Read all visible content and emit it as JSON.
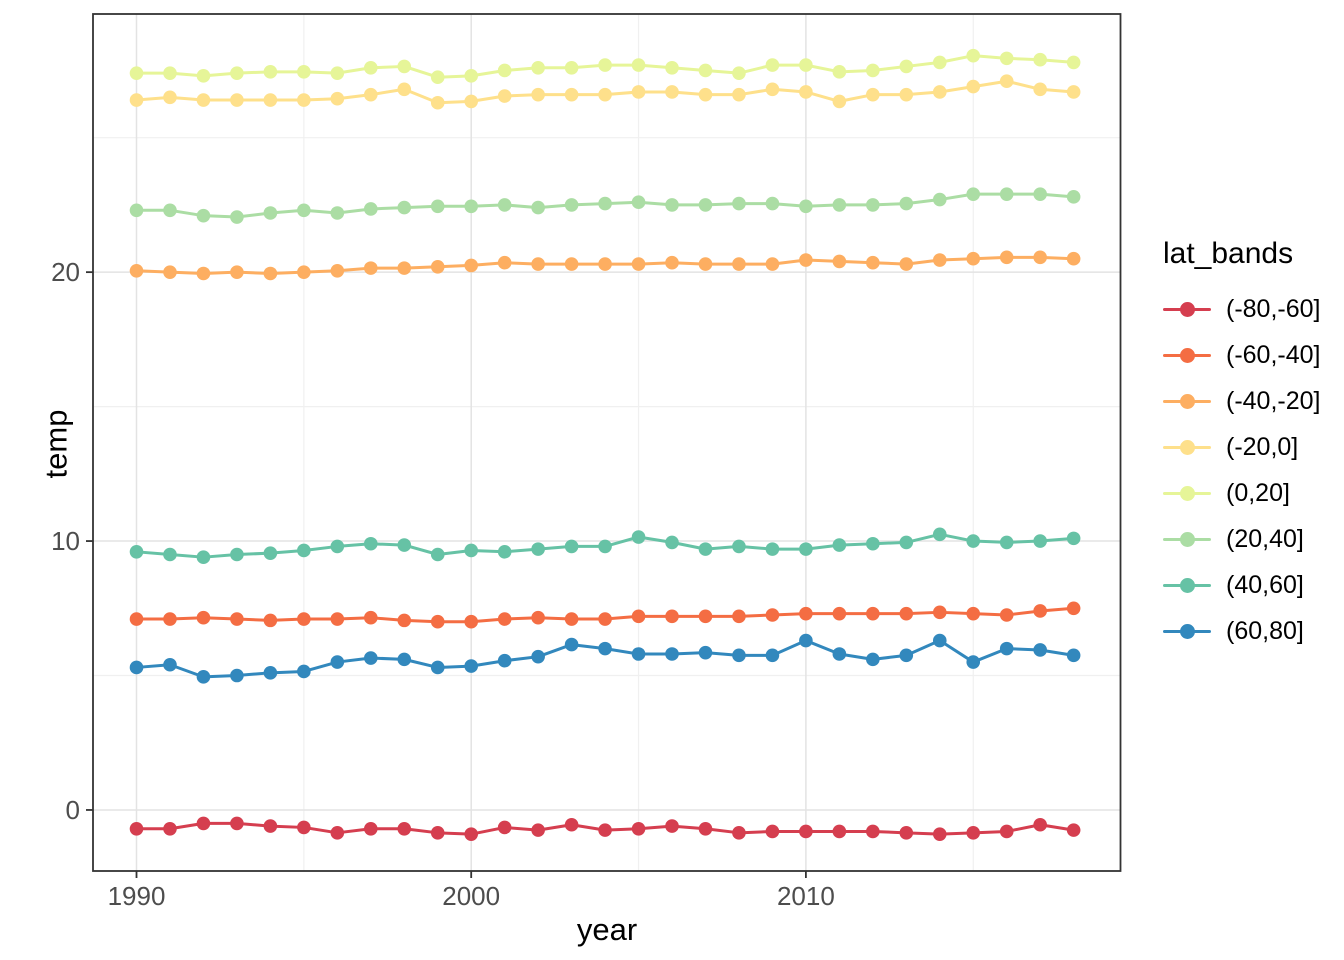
{
  "chart_data": {
    "type": "line",
    "title": "",
    "xlabel": "year",
    "ylabel": "temp",
    "legend_title": "lat_bands",
    "legend_position": "right",
    "grid": "major and minor, light grey on white panel",
    "x": [
      1990,
      1991,
      1992,
      1993,
      1994,
      1995,
      1996,
      1997,
      1998,
      1999,
      2000,
      2001,
      2002,
      2003,
      2004,
      2005,
      2006,
      2007,
      2008,
      2009,
      2010,
      2011,
      2012,
      2013,
      2014,
      2015,
      2016,
      2017,
      2018
    ],
    "x_ticks": [
      1990,
      2000,
      2010
    ],
    "x_minor_ticks": [
      1995,
      2005,
      2015
    ],
    "y_ticks": [
      0,
      10,
      20
    ],
    "y_minor_ticks": [
      5,
      15,
      25
    ],
    "xlim": [
      1988.7,
      2019.4
    ],
    "ylim": [
      -2.27,
      29.6
    ],
    "series": [
      {
        "name": "(-80,-60]",
        "color": "#D53E4F",
        "values": [
          -0.7,
          -0.7,
          -0.5,
          -0.5,
          -0.6,
          -0.65,
          -0.85,
          -0.7,
          -0.7,
          -0.85,
          -0.9,
          -0.65,
          -0.75,
          -0.55,
          -0.75,
          -0.7,
          -0.6,
          -0.7,
          -0.85,
          -0.8,
          -0.8,
          -0.8,
          -0.8,
          -0.85,
          -0.9,
          -0.85,
          -0.8,
          -0.55,
          -0.75
        ]
      },
      {
        "name": "(-60,-40]",
        "color": "#F46D43",
        "values": [
          7.1,
          7.1,
          7.15,
          7.1,
          7.05,
          7.1,
          7.1,
          7.15,
          7.05,
          7.0,
          7.0,
          7.1,
          7.15,
          7.1,
          7.1,
          7.2,
          7.2,
          7.2,
          7.2,
          7.25,
          7.3,
          7.3,
          7.3,
          7.3,
          7.35,
          7.3,
          7.25,
          7.4,
          7.5
        ]
      },
      {
        "name": "(-40,-20]",
        "color": "#FDAE61",
        "values": [
          20.05,
          20.0,
          19.95,
          20.0,
          19.95,
          20.0,
          20.05,
          20.15,
          20.15,
          20.2,
          20.25,
          20.35,
          20.3,
          20.3,
          20.3,
          20.3,
          20.35,
          20.3,
          20.3,
          20.3,
          20.45,
          20.4,
          20.35,
          20.3,
          20.45,
          20.5,
          20.55,
          20.55,
          20.5
        ]
      },
      {
        "name": "(-20,0]",
        "color": "#FEE08B",
        "values": [
          26.4,
          26.5,
          26.4,
          26.4,
          26.4,
          26.4,
          26.45,
          26.6,
          26.8,
          26.3,
          26.35,
          26.55,
          26.6,
          26.6,
          26.6,
          26.7,
          26.7,
          26.6,
          26.6,
          26.8,
          26.7,
          26.35,
          26.6,
          26.6,
          26.7,
          26.9,
          27.1,
          26.8,
          26.7
        ]
      },
      {
        "name": "(0,20]",
        "color": "#E6F598",
        "values": [
          27.4,
          27.4,
          27.3,
          27.4,
          27.45,
          27.45,
          27.4,
          27.6,
          27.65,
          27.25,
          27.3,
          27.5,
          27.6,
          27.6,
          27.7,
          27.7,
          27.6,
          27.5,
          27.4,
          27.7,
          27.7,
          27.45,
          27.5,
          27.65,
          27.8,
          28.05,
          27.95,
          27.9,
          27.8
        ]
      },
      {
        "name": "(20,40]",
        "color": "#ABDDA4",
        "values": [
          22.3,
          22.3,
          22.1,
          22.05,
          22.2,
          22.3,
          22.2,
          22.35,
          22.4,
          22.45,
          22.45,
          22.5,
          22.4,
          22.5,
          22.55,
          22.6,
          22.5,
          22.5,
          22.55,
          22.55,
          22.45,
          22.5,
          22.5,
          22.55,
          22.7,
          22.9,
          22.9,
          22.9,
          22.8
        ]
      },
      {
        "name": "(40,60]",
        "color": "#66C2A5",
        "values": [
          9.6,
          9.5,
          9.4,
          9.5,
          9.55,
          9.65,
          9.8,
          9.9,
          9.85,
          9.5,
          9.65,
          9.6,
          9.7,
          9.8,
          9.8,
          10.15,
          9.95,
          9.7,
          9.8,
          9.7,
          9.7,
          9.85,
          9.9,
          9.95,
          10.25,
          10.0,
          9.95,
          10.0,
          10.1
        ]
      },
      {
        "name": "(60,80]",
        "color": "#3288BD",
        "values": [
          5.3,
          5.4,
          4.95,
          5.0,
          5.1,
          5.15,
          5.5,
          5.65,
          5.6,
          5.3,
          5.35,
          5.55,
          5.7,
          6.15,
          6.0,
          5.8,
          5.8,
          5.85,
          5.75,
          5.75,
          6.3,
          5.8,
          5.6,
          5.75,
          6.3,
          5.5,
          6.0,
          5.95,
          5.75
        ]
      }
    ]
  },
  "style": {
    "background": "#FFFFFF",
    "panel_border": "#333333",
    "grid_major": "#E3E3E3",
    "grid_minor": "#F0F0F0",
    "tick_color": "#333333",
    "tick_label_color": "#4D4D4D",
    "axis_title_color": "#000000",
    "legend_text_color": "#000000"
  }
}
